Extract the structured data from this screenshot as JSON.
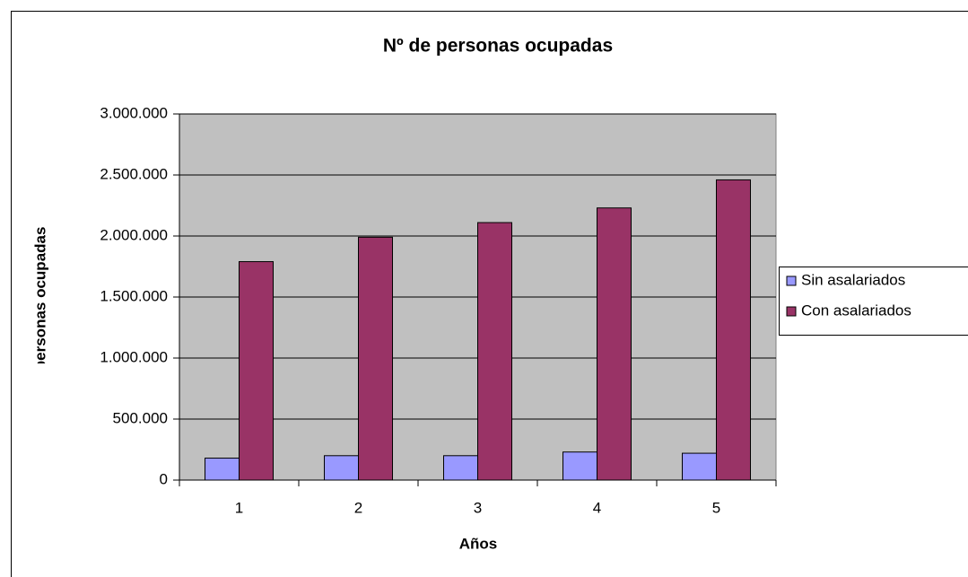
{
  "chart_data": {
    "type": "bar",
    "title": "Nº de personas ocupadas",
    "xlabel": "Años",
    "ylabel": "Nº personas ocupadas",
    "categories": [
      "1",
      "2",
      "3",
      "4",
      "5"
    ],
    "series": [
      {
        "name": "Sin asalariados",
        "color": "#9999ff",
        "values": [
          180000,
          200000,
          200000,
          230000,
          220000
        ]
      },
      {
        "name": "Con asalariados",
        "color": "#993366",
        "values": [
          1790000,
          1990000,
          2110000,
          2230000,
          2460000
        ]
      }
    ],
    "ylim": [
      0,
      3000000
    ],
    "yticks": [
      {
        "value": 0,
        "label": "0"
      },
      {
        "value": 500000,
        "label": "500.000"
      },
      {
        "value": 1000000,
        "label": "1.000.000"
      },
      {
        "value": 1500000,
        "label": "1.500.000"
      },
      {
        "value": 2000000,
        "label": "2.000.000"
      },
      {
        "value": 2500000,
        "label": "2.500.000"
      },
      {
        "value": 3000000,
        "label": "3.000.000"
      }
    ],
    "grid": true,
    "legend": "right"
  }
}
